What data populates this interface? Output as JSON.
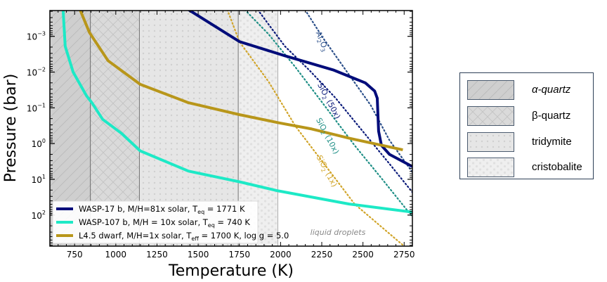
{
  "chart_data": {
    "type": "line",
    "xlabel": "Temperature (K)",
    "ylabel": "Pressure (bar)",
    "xlim": [
      600,
      2800
    ],
    "ylim": [
      0.00019,
      740
    ],
    "yscale": "log",
    "yaxis_inverted": true,
    "grid": false,
    "xticks": [
      750,
      1000,
      1250,
      1500,
      1750,
      2000,
      2250,
      2500,
      2750
    ],
    "yticks": [
      {
        "exp": "-3",
        "value": 0.001
      },
      {
        "exp": "-2",
        "value": 0.01
      },
      {
        "exp": "-1",
        "value": 0.1
      },
      {
        "exp": "0",
        "value": 1
      },
      {
        "exp": "1",
        "value": 10
      },
      {
        "exp": "2",
        "value": 100
      }
    ],
    "phase_regions": [
      {
        "name": "α-quartz",
        "T_range": [
          600,
          846
        ],
        "color": "#cfcfcf"
      },
      {
        "name": "β-quartz",
        "T_range": [
          846,
          1143
        ],
        "color": "#dadada"
      },
      {
        "name": "tridymite",
        "T_range": [
          1143,
          1743
        ],
        "color": "#e6e6e6"
      },
      {
        "name": "cristobalite",
        "T_range": [
          1743,
          1983
        ],
        "color": "#eeeeee"
      }
    ],
    "series": [
      {
        "name": "WASP-17 b, M/H=81x solar,  T_eq = 1771 K",
        "color": "#000c7a",
        "style": "solid",
        "T": [
          1441,
          1750,
          2026,
          2319,
          2514,
          2571,
          2587,
          2595,
          2612,
          2661,
          2800
        ],
        "P": [
          0.00018,
          0.0014,
          0.0035,
          0.0087,
          0.02,
          0.034,
          0.054,
          0.45,
          1.12,
          2.0,
          4.4
        ]
      },
      {
        "name": "WASP-107 b, M/H = 10x solar, T_eq = 740 K",
        "color": "#1de9c6",
        "style": "solid",
        "T": [
          680,
          693,
          741,
          822,
          855,
          920,
          1035,
          1148,
          1441,
          1750,
          1985,
          2416,
          2800
        ],
        "P": [
          0.00018,
          0.0019,
          0.01,
          0.046,
          0.072,
          0.21,
          0.52,
          1.6,
          5.9,
          11.7,
          21,
          49,
          83
        ]
      },
      {
        "name": "L4.5 dwarf, M/H=1x solar, T_eff = 1700 K, log g = 5.0",
        "color": "#b8961a",
        "style": "solid",
        "T": [
          783,
          840,
          953,
          1148,
          1441,
          1750,
          1985,
          2189,
          2417,
          2742
        ],
        "P": [
          0.00018,
          0.00078,
          0.0048,
          0.022,
          0.072,
          0.155,
          0.26,
          0.39,
          0.71,
          1.5
        ]
      }
    ],
    "condensation_curves": [
      {
        "label": "Al2O3",
        "text": "Al",
        "sub1": "2",
        "mid": "O",
        "sub2": "3",
        "tail": "",
        "color": "#2b4f8a",
        "T": [
          2148,
          2254,
          2384,
          2547,
          2661,
          2800
        ],
        "P": [
          0.00018,
          0.00105,
          0.0074,
          0.085,
          0.81,
          6.3
        ]
      },
      {
        "label": "SiO2 (50x)",
        "text": "SiO",
        "sub1": "2",
        "mid": " (50x)",
        "sub2": "",
        "tail": "",
        "color": "#0a1a7a",
        "T": [
          1861,
          2026,
          2173,
          2335,
          2498,
          2661,
          2800
        ],
        "P": [
          0.00018,
          0.0019,
          0.0087,
          0.054,
          0.45,
          3.7,
          23
        ]
      },
      {
        "label": "SiO2 (10x)",
        "text": "SiO",
        "sub1": "2",
        "mid": " (10x)",
        "sub2": "",
        "tail": "",
        "color": "#1f8f86",
        "T": [
          1783,
          1929,
          2091,
          2254,
          2449,
          2612,
          2800
        ],
        "P": [
          0.00018,
          0.00089,
          0.0074,
          0.072,
          1.12,
          9.3,
          112
        ]
      },
      {
        "label": "SiO2 (1x)",
        "text": "SiO",
        "sub1": "2",
        "mid": " (1x)",
        "sub2": "",
        "tail": "",
        "color": "#d1a52a",
        "T": [
          1677,
          1750,
          1929,
          2091,
          2254,
          2449,
          2742
        ],
        "P": [
          0.00018,
          0.0014,
          0.019,
          0.33,
          3.2,
          49,
          690
        ]
      }
    ],
    "annotations": {
      "liquid": "liquid droplets"
    },
    "legend": {
      "placement": "lower-left",
      "entries": [
        {
          "pre": "WASP-17 b, M/H=81x solar,  T",
          "sub": "eq",
          "post": " = 1771 K",
          "color": "#000c7a"
        },
        {
          "pre": "WASP-107 b, M/H = 10x solar, T",
          "sub": "eq",
          "post": " = 740 K",
          "color": "#1de9c6"
        },
        {
          "pre": "L4.5 dwarf, M/H=1x solar, T",
          "sub": "eff",
          "post": " = 1700 K, log g = 5.0",
          "color": "#b8961a"
        }
      ]
    },
    "phase_legend": [
      "α-quartz",
      "β-quartz",
      "tridymite",
      "cristobalite"
    ]
  }
}
